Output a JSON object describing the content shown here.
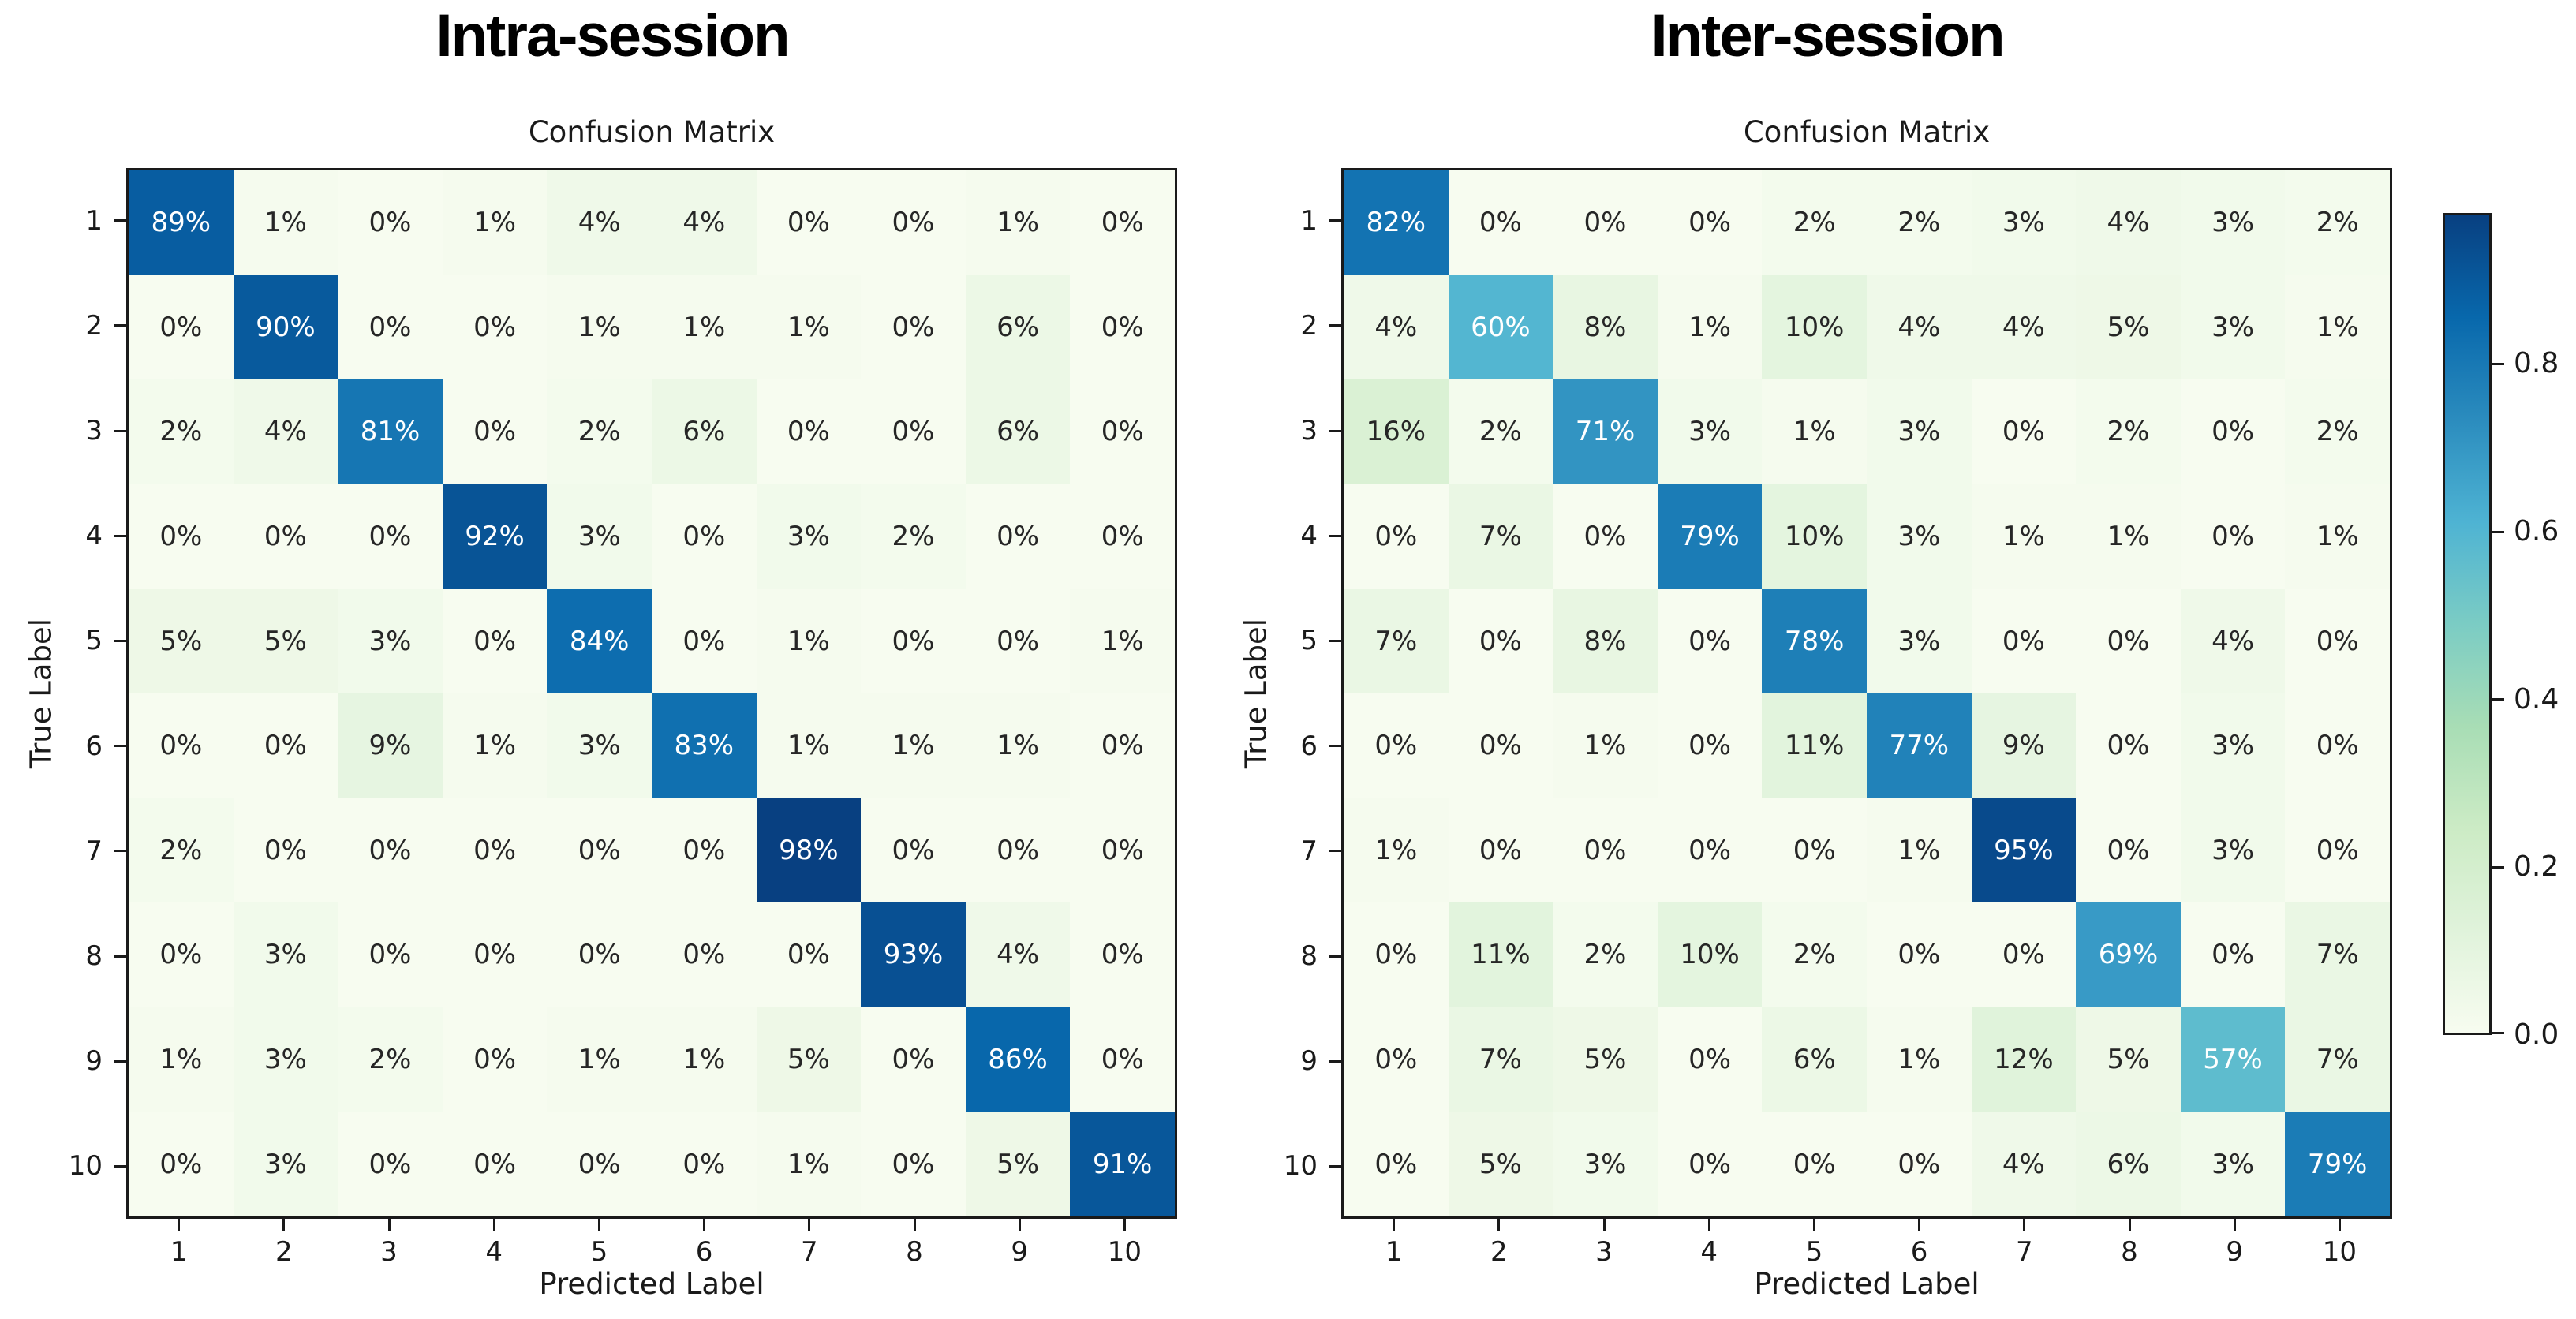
{
  "colors": {
    "background": "#ffffff",
    "axis": "#1a1a1a",
    "cell_text_dark": "#262626",
    "cell_text_light": "#ffffff"
  },
  "colorbar": {
    "colormap": "GnBu",
    "vmin": 0.0,
    "vmax": 0.98,
    "tick_values": [
      0.8,
      0.6,
      0.4,
      0.2,
      0.0
    ],
    "tick_labels": [
      "0.8",
      "0.6",
      "0.4",
      "0.2",
      "0.0"
    ],
    "colormap_hex": [
      "#f7fcf0",
      "#e0f3db",
      "#ccebc5",
      "#a8ddb5",
      "#7bccc4",
      "#4eb3d3",
      "#2b8cbe",
      "#0868ac",
      "#084081"
    ]
  },
  "chart_data": [
    {
      "type": "heatmap",
      "title": "Intra-session",
      "axes_title": "Confusion Matrix",
      "xlabel": "Predicted Label",
      "ylabel": "True Label",
      "x_tick_labels": [
        "1",
        "2",
        "3",
        "4",
        "5",
        "6",
        "7",
        "8",
        "9",
        "10"
      ],
      "y_tick_labels": [
        "1",
        "2",
        "3",
        "4",
        "5",
        "6",
        "7",
        "8",
        "9",
        "10"
      ],
      "cell_label_suffix": "%",
      "values_percent": [
        [
          89,
          1,
          0,
          1,
          4,
          4,
          0,
          0,
          1,
          0
        ],
        [
          0,
          90,
          0,
          0,
          1,
          1,
          1,
          0,
          6,
          0
        ],
        [
          2,
          4,
          81,
          0,
          2,
          6,
          0,
          0,
          6,
          0
        ],
        [
          0,
          0,
          0,
          92,
          3,
          0,
          3,
          2,
          0,
          0
        ],
        [
          5,
          5,
          3,
          0,
          84,
          0,
          1,
          0,
          0,
          1
        ],
        [
          0,
          0,
          9,
          1,
          3,
          83,
          1,
          1,
          1,
          0
        ],
        [
          2,
          0,
          0,
          0,
          0,
          0,
          98,
          0,
          0,
          0
        ],
        [
          0,
          3,
          0,
          0,
          0,
          0,
          0,
          93,
          4,
          0
        ],
        [
          1,
          3,
          2,
          0,
          1,
          1,
          5,
          0,
          86,
          0
        ],
        [
          0,
          3,
          0,
          0,
          0,
          0,
          1,
          0,
          5,
          91
        ]
      ]
    },
    {
      "type": "heatmap",
      "title": "Inter-session",
      "axes_title": "Confusion Matrix",
      "xlabel": "Predicted Label",
      "ylabel": "True Label",
      "x_tick_labels": [
        "1",
        "2",
        "3",
        "4",
        "5",
        "6",
        "7",
        "8",
        "9",
        "10"
      ],
      "y_tick_labels": [
        "1",
        "2",
        "3",
        "4",
        "5",
        "6",
        "7",
        "8",
        "9",
        "10"
      ],
      "cell_label_suffix": "%",
      "values_percent": [
        [
          82,
          0,
          0,
          0,
          2,
          2,
          3,
          4,
          3,
          2
        ],
        [
          4,
          60,
          8,
          1,
          10,
          4,
          4,
          5,
          3,
          1
        ],
        [
          16,
          2,
          71,
          3,
          1,
          3,
          0,
          2,
          0,
          2
        ],
        [
          0,
          7,
          0,
          79,
          10,
          3,
          1,
          1,
          0,
          1
        ],
        [
          7,
          0,
          8,
          0,
          78,
          3,
          0,
          0,
          4,
          0
        ],
        [
          0,
          0,
          1,
          0,
          11,
          77,
          9,
          0,
          3,
          0
        ],
        [
          1,
          0,
          0,
          0,
          0,
          1,
          95,
          0,
          3,
          0
        ],
        [
          0,
          11,
          2,
          10,
          2,
          0,
          0,
          69,
          0,
          7
        ],
        [
          0,
          7,
          5,
          0,
          6,
          1,
          12,
          5,
          57,
          7
        ],
        [
          0,
          5,
          3,
          0,
          0,
          0,
          4,
          6,
          3,
          79
        ]
      ]
    }
  ]
}
